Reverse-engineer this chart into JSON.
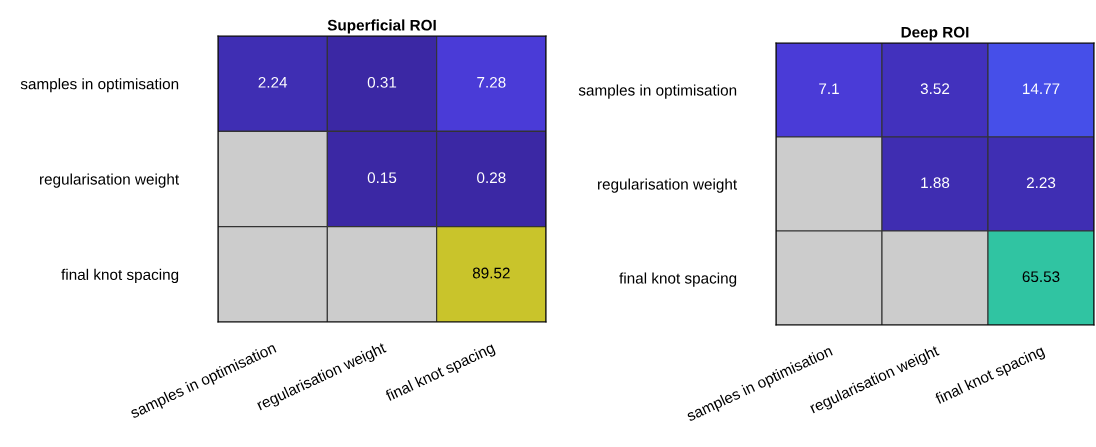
{
  "chart_data": [
    {
      "type": "heatmap",
      "title": "Superficial ROI",
      "categories": [
        "samples in optimisation",
        "regularisation weight",
        "final knot spacing"
      ],
      "y_categories": [
        "samples in optimisation",
        "regularisation weight",
        "final knot spacing"
      ],
      "cells": [
        [
          2.24,
          0.31,
          7.28
        ],
        [
          null,
          0.15,
          0.28
        ],
        [
          null,
          null,
          89.52
        ]
      ],
      "data_labels": true
    },
    {
      "type": "heatmap",
      "title": "Deep ROI",
      "categories": [
        "samples in optimisation",
        "regularisation weight",
        "final knot spacing"
      ],
      "y_categories": [
        "samples in optimisation",
        "regularisation weight",
        "final knot spacing"
      ],
      "cells": [
        [
          7.1,
          3.52,
          14.77
        ],
        [
          null,
          1.88,
          2.23
        ],
        [
          null,
          null,
          65.53
        ]
      ],
      "data_labels": true
    }
  ]
}
